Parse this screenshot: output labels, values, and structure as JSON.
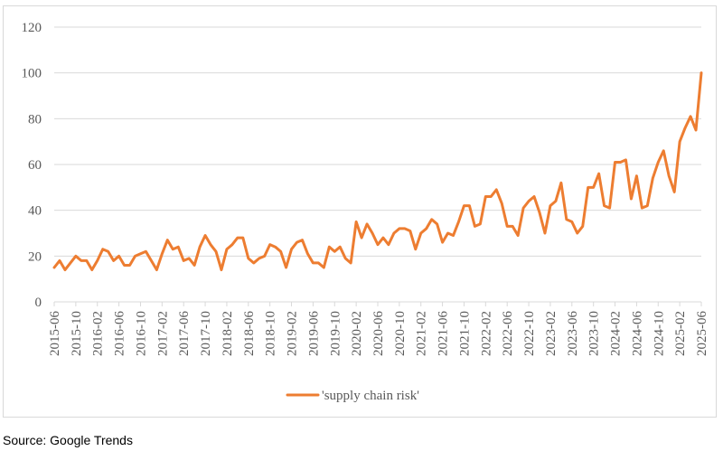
{
  "source_note": "Source: Google Trends",
  "colors": {
    "series": "#ED7D31",
    "grid": "#d9d9d9",
    "text": "#595959",
    "frame": "#d9d9d9"
  },
  "chart_data": {
    "type": "line",
    "title": "",
    "xlabel": "",
    "ylabel": "",
    "ylim": [
      0,
      120
    ],
    "yticks": [
      0,
      20,
      40,
      60,
      80,
      100,
      120
    ],
    "grid": "horizontal",
    "legend": "bottom",
    "x_tick_every": 4,
    "x": [
      "2015-06",
      "2015-07",
      "2015-08",
      "2015-09",
      "2015-10",
      "2015-11",
      "2015-12",
      "2016-01",
      "2016-02",
      "2016-03",
      "2016-04",
      "2016-05",
      "2016-06",
      "2016-07",
      "2016-08",
      "2016-09",
      "2016-10",
      "2016-11",
      "2016-12",
      "2017-01",
      "2017-02",
      "2017-03",
      "2017-04",
      "2017-05",
      "2017-06",
      "2017-07",
      "2017-08",
      "2017-09",
      "2017-10",
      "2017-11",
      "2017-12",
      "2018-01",
      "2018-02",
      "2018-03",
      "2018-04",
      "2018-05",
      "2018-06",
      "2018-07",
      "2018-08",
      "2018-09",
      "2018-10",
      "2018-11",
      "2018-12",
      "2019-01",
      "2019-02",
      "2019-03",
      "2019-04",
      "2019-05",
      "2019-06",
      "2019-07",
      "2019-08",
      "2019-09",
      "2019-10",
      "2019-11",
      "2019-12",
      "2020-01",
      "2020-02",
      "2020-03",
      "2020-04",
      "2020-05",
      "2020-06",
      "2020-07",
      "2020-08",
      "2020-09",
      "2020-10",
      "2020-11",
      "2020-12",
      "2021-01",
      "2021-02",
      "2021-03",
      "2021-04",
      "2021-05",
      "2021-06",
      "2021-07",
      "2021-08",
      "2021-09",
      "2021-10",
      "2021-11",
      "2021-12",
      "2022-01",
      "2022-02",
      "2022-03",
      "2022-04",
      "2022-05",
      "2022-06",
      "2022-07",
      "2022-08",
      "2022-09",
      "2022-10",
      "2022-11",
      "2022-12",
      "2023-01",
      "2023-02",
      "2023-03",
      "2023-04",
      "2023-05",
      "2023-06",
      "2023-07",
      "2023-08",
      "2023-09",
      "2023-10",
      "2023-11",
      "2023-12",
      "2024-01",
      "2024-02",
      "2024-03",
      "2024-04",
      "2024-05",
      "2024-06",
      "2024-07",
      "2024-08",
      "2024-09",
      "2024-10",
      "2024-11",
      "2024-12",
      "2025-01",
      "2025-02",
      "2025-03",
      "2025-04",
      "2025-05",
      "2025-06"
    ],
    "series": [
      {
        "name": "'supply chain risk'",
        "values": [
          15,
          18,
          14,
          17,
          20,
          18,
          18,
          14,
          18,
          23,
          22,
          18,
          20,
          16,
          16,
          20,
          21,
          22,
          18,
          14,
          21,
          27,
          23,
          24,
          18,
          19,
          16,
          24,
          29,
          25,
          22,
          14,
          23,
          25,
          28,
          28,
          19,
          17,
          19,
          20,
          25,
          24,
          22,
          15,
          23,
          26,
          27,
          21,
          17,
          17,
          15,
          24,
          22,
          24,
          19,
          17,
          35,
          28,
          34,
          30,
          25,
          28,
          25,
          30,
          32,
          32,
          31,
          23,
          30,
          32,
          36,
          34,
          26,
          30,
          29,
          35,
          42,
          42,
          33,
          34,
          46,
          46,
          49,
          43,
          33,
          33,
          29,
          41,
          44,
          46,
          39,
          30,
          42,
          44,
          52,
          36,
          35,
          30,
          33,
          50,
          50,
          56,
          42,
          41,
          61,
          61,
          62,
          45,
          55,
          41,
          42,
          54,
          61,
          66,
          55,
          48,
          70,
          76,
          81,
          75,
          100
        ]
      }
    ]
  }
}
